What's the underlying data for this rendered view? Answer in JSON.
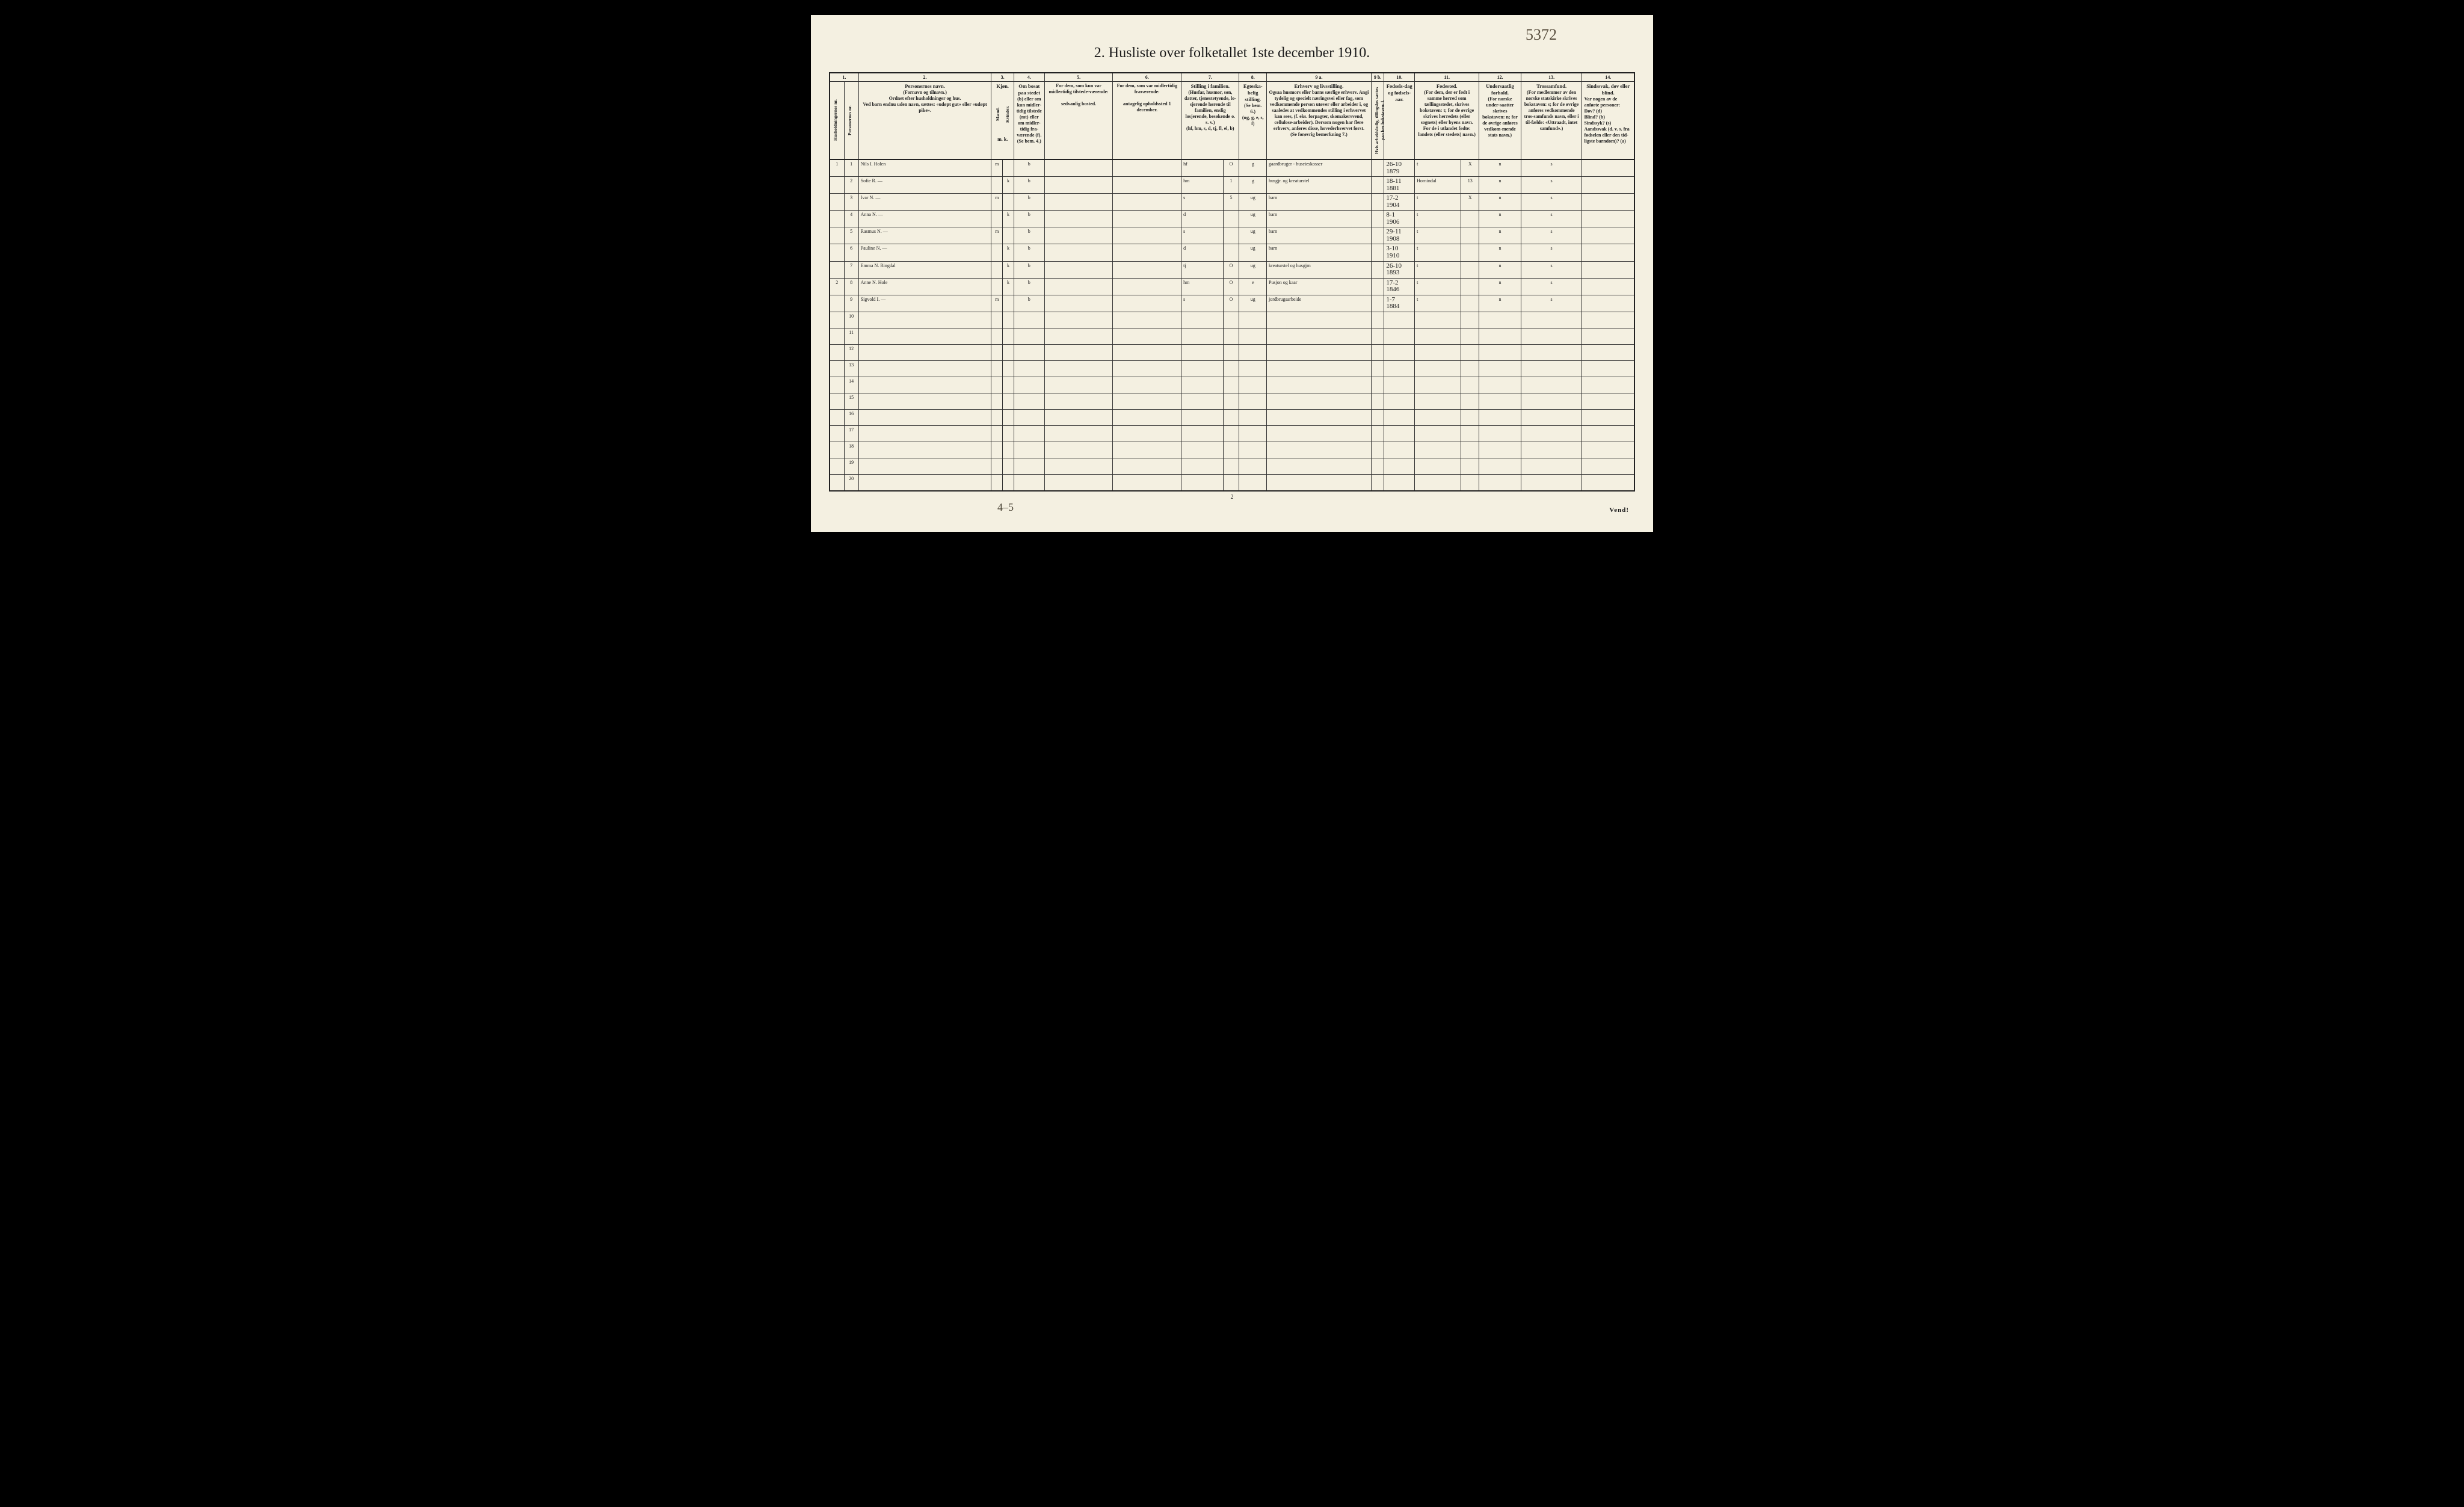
{
  "page": {
    "title": "2.  Husliste over folketallet 1ste december 1910.",
    "top_handwritten": "5372",
    "page_number": "2",
    "vend": "Vend!",
    "bottom_left_note": "4–5"
  },
  "columns": {
    "numbers": [
      "1.",
      "2.",
      "3.",
      "4.",
      "5.",
      "6.",
      "7.",
      "8.",
      "9 a.",
      "9 b.",
      "10.",
      "11.",
      "12.",
      "13.",
      "14."
    ],
    "col1": {
      "sub1": "Husholdningernes nr.",
      "sub2": "Personernes nr."
    },
    "col2": {
      "heading": "Personernes navn.",
      "line1": "(Fornavn og tilnavn.)",
      "line2": "Ordnet efter husholdninger og hus.",
      "line3": "Ved barn endnu uden navn, sættes: «udøpt gut» eller «udøpt pike»."
    },
    "col3": {
      "heading": "Kjøn.",
      "sub1": "Mænd.",
      "sub2": "Kvinder.",
      "foot": "m.  k."
    },
    "col4": {
      "heading": "Om bosat paa stedet",
      "body": "(b) eller om kun midler-tidig tilstede (mt) eller om midler-tidig fra-værende (f).",
      "foot": "(Se bem. 4.)"
    },
    "col5": {
      "heading": "For dem, som kun var midlertidig tilstede-værende:",
      "body": "sedvanlig bosted."
    },
    "col6": {
      "heading": "For dem, som var midlertidig fraværende:",
      "body": "antagelig opholdssted 1 december."
    },
    "col7": {
      "heading": "Stilling i familien.",
      "body": "(Husfar, husmor, søn, datter, tjenestetyende, lo-sjerende hørende til familien, enslig losjerende, besøkende o. s. v.)",
      "foot": "(hf, hm, s, d, tj, fl, el, b)"
    },
    "col8": {
      "heading": "Egteska-belig stilling.",
      "body": "(Se bem. 6.)",
      "foot": "(ug, g, e, s, f)"
    },
    "col9a": {
      "heading": "Erhverv og livsstilling.",
      "body": "Ogsaa husmors eller barns særlige erhverv. Angi tydelig og specielt næringsvei eller fag, som vedkommende person utøver eller arbeider i, og saaledes at vedkommendes stilling i erhvervet kan sees, (f. eks. forpagter, skomakersvend, cellulose-arbeider). Dersom nogen har flere erhverv, anføres disse, hovederhvervet først.",
      "foot": "(Se forøvrig bemerkning 7.)"
    },
    "col9b": {
      "body": "Hvis arbeidsledig, tillingsløs sættes paa her bokstaven: l."
    },
    "col10": {
      "heading": "Fødsels-dag og fødsels-aar."
    },
    "col11": {
      "heading": "Fødested.",
      "body": "(For dem, der er født i samme herred som tællingsstedet, skrives bokstaven: t; for de øvrige skrives herredets (eller sognets) eller byens navn. For de i utlandet fødte: landets (eller stedets) navn.)"
    },
    "col12": {
      "heading": "Undersaatlig forhold.",
      "body": "(For norske under-saatter skrives bokstaven: n; for de øvrige anføres vedkom-mende stats navn.)"
    },
    "col13": {
      "heading": "Trossamfund.",
      "body": "(For medlemmer av den norske statskirke skrives bokstaven: s; for de øvrige anføres vedkommende tros-samfunds navn, eller i til-fælde: «Uttraadt, intet samfund».)"
    },
    "col14": {
      "heading": "Sindssvak, døv eller blind.",
      "body": "Var nogen av de anførte personer:\nDøv?     (d)\nBlind?   (b)\nSindssyk? (s)\nAandssvak (d. v. s. fra fødselen eller den tid-ligste barndom)? (a)"
    }
  },
  "rows": [
    {
      "hh": "1",
      "n": "1",
      "name": "Nils I. Holen",
      "m": "m",
      "k": "",
      "bosat": "b",
      "c5": "",
      "c6": "",
      "fam": "hf",
      "o": "O",
      "egte": "g",
      "erhverv": "gaardbruger - huseieskosser",
      "c9b": "",
      "dob": "26-10\n1879",
      "fsted": "t",
      "x11": "X",
      "unders": "n",
      "tros": "s",
      "c14": ""
    },
    {
      "hh": "",
      "n": "2",
      "name": "Sofie R.     —",
      "m": "",
      "k": "k",
      "bosat": "b",
      "c5": "",
      "c6": "",
      "fam": "hm",
      "o": "1",
      "egte": "g",
      "erhverv": "husgjr. og kreaturstel",
      "c9b": "",
      "dob": "18-11\n1881",
      "fsted": "Hornindal",
      "x11": "13",
      "unders": "n",
      "tros": "s",
      "c14": ""
    },
    {
      "hh": "",
      "n": "3",
      "name": "Ivar N.      —",
      "m": "m",
      "k": "",
      "bosat": "b",
      "c5": "",
      "c6": "",
      "fam": "s",
      "o": "5",
      "egte": "ug",
      "erhverv": "barn",
      "c9b": "",
      "dob": "17-2\n1904",
      "fsted": "t",
      "x11": "X",
      "unders": "n",
      "tros": "s",
      "c14": ""
    },
    {
      "hh": "",
      "n": "4",
      "name": "Anna N.     —",
      "m": "",
      "k": "k",
      "bosat": "b",
      "c5": "",
      "c6": "",
      "fam": "d",
      "o": "",
      "egte": "ug",
      "erhverv": "barn",
      "c9b": "",
      "dob": "8-1\n1906",
      "fsted": "t",
      "x11": "",
      "unders": "n",
      "tros": "s",
      "c14": ""
    },
    {
      "hh": "",
      "n": "5",
      "name": "Rasmus N.  —",
      "m": "m",
      "k": "",
      "bosat": "b",
      "c5": "",
      "c6": "",
      "fam": "s",
      "o": "",
      "egte": "ug",
      "erhverv": "barn",
      "c9b": "",
      "dob": "29-11\n1908",
      "fsted": "t",
      "x11": "",
      "unders": "n",
      "tros": "s",
      "c14": ""
    },
    {
      "hh": "",
      "n": "6",
      "name": "Pauline N.  —",
      "m": "",
      "k": "k",
      "bosat": "b",
      "c5": "",
      "c6": "",
      "fam": "d",
      "o": "",
      "egte": "ug",
      "erhverv": "barn",
      "c9b": "",
      "dob": "3-10\n1910",
      "fsted": "t",
      "x11": "",
      "unders": "n",
      "tros": "s",
      "c14": ""
    },
    {
      "hh": "",
      "n": "7",
      "name": "Emma N. Ringdal",
      "m": "",
      "k": "k",
      "bosat": "b",
      "c5": "",
      "c6": "",
      "fam": "tj",
      "o": "O",
      "egte": "ug",
      "erhverv": "kreaturstel og husgjrn",
      "c9b": "",
      "dob": "26-10\n1893",
      "fsted": "t",
      "x11": "",
      "unders": "n",
      "tros": "s",
      "c14": ""
    },
    {
      "hh": "2",
      "n": "8",
      "name": "Anne N. Hole",
      "m": "",
      "k": "k",
      "bosat": "b",
      "c5": "",
      "c6": "",
      "fam": "hm",
      "o": "O",
      "egte": "e",
      "erhverv": "Pusjon og kaar",
      "c9b": "",
      "dob": "17-2\n1846",
      "fsted": "t",
      "x11": "",
      "unders": "n",
      "tros": "s",
      "c14": ""
    },
    {
      "hh": "",
      "n": "9",
      "name": "Sigvold I.   —",
      "m": "m",
      "k": "",
      "bosat": "b",
      "c5": "",
      "c6": "",
      "fam": "s",
      "o": "O",
      "egte": "ug",
      "erhverv": "jordbrugsarbeide",
      "c9b": "",
      "dob": "1-7\n1884",
      "fsted": "t",
      "x11": "",
      "unders": "n",
      "tros": "s",
      "c14": ""
    }
  ],
  "empty_row_count": 11,
  "layout": {
    "col_widths_pct": [
      1.8,
      1.8,
      16.5,
      1.4,
      1.4,
      3.8,
      8.5,
      8.5,
      7.2,
      3.4,
      13.0,
      1.6,
      3.8,
      8.0,
      5.2,
      7.6,
      6.5
    ]
  },
  "colors": {
    "page_bg": "#f4f0e1",
    "ink": "#1a1a1a",
    "handwriting": "#3a342a",
    "border": "#333333"
  }
}
